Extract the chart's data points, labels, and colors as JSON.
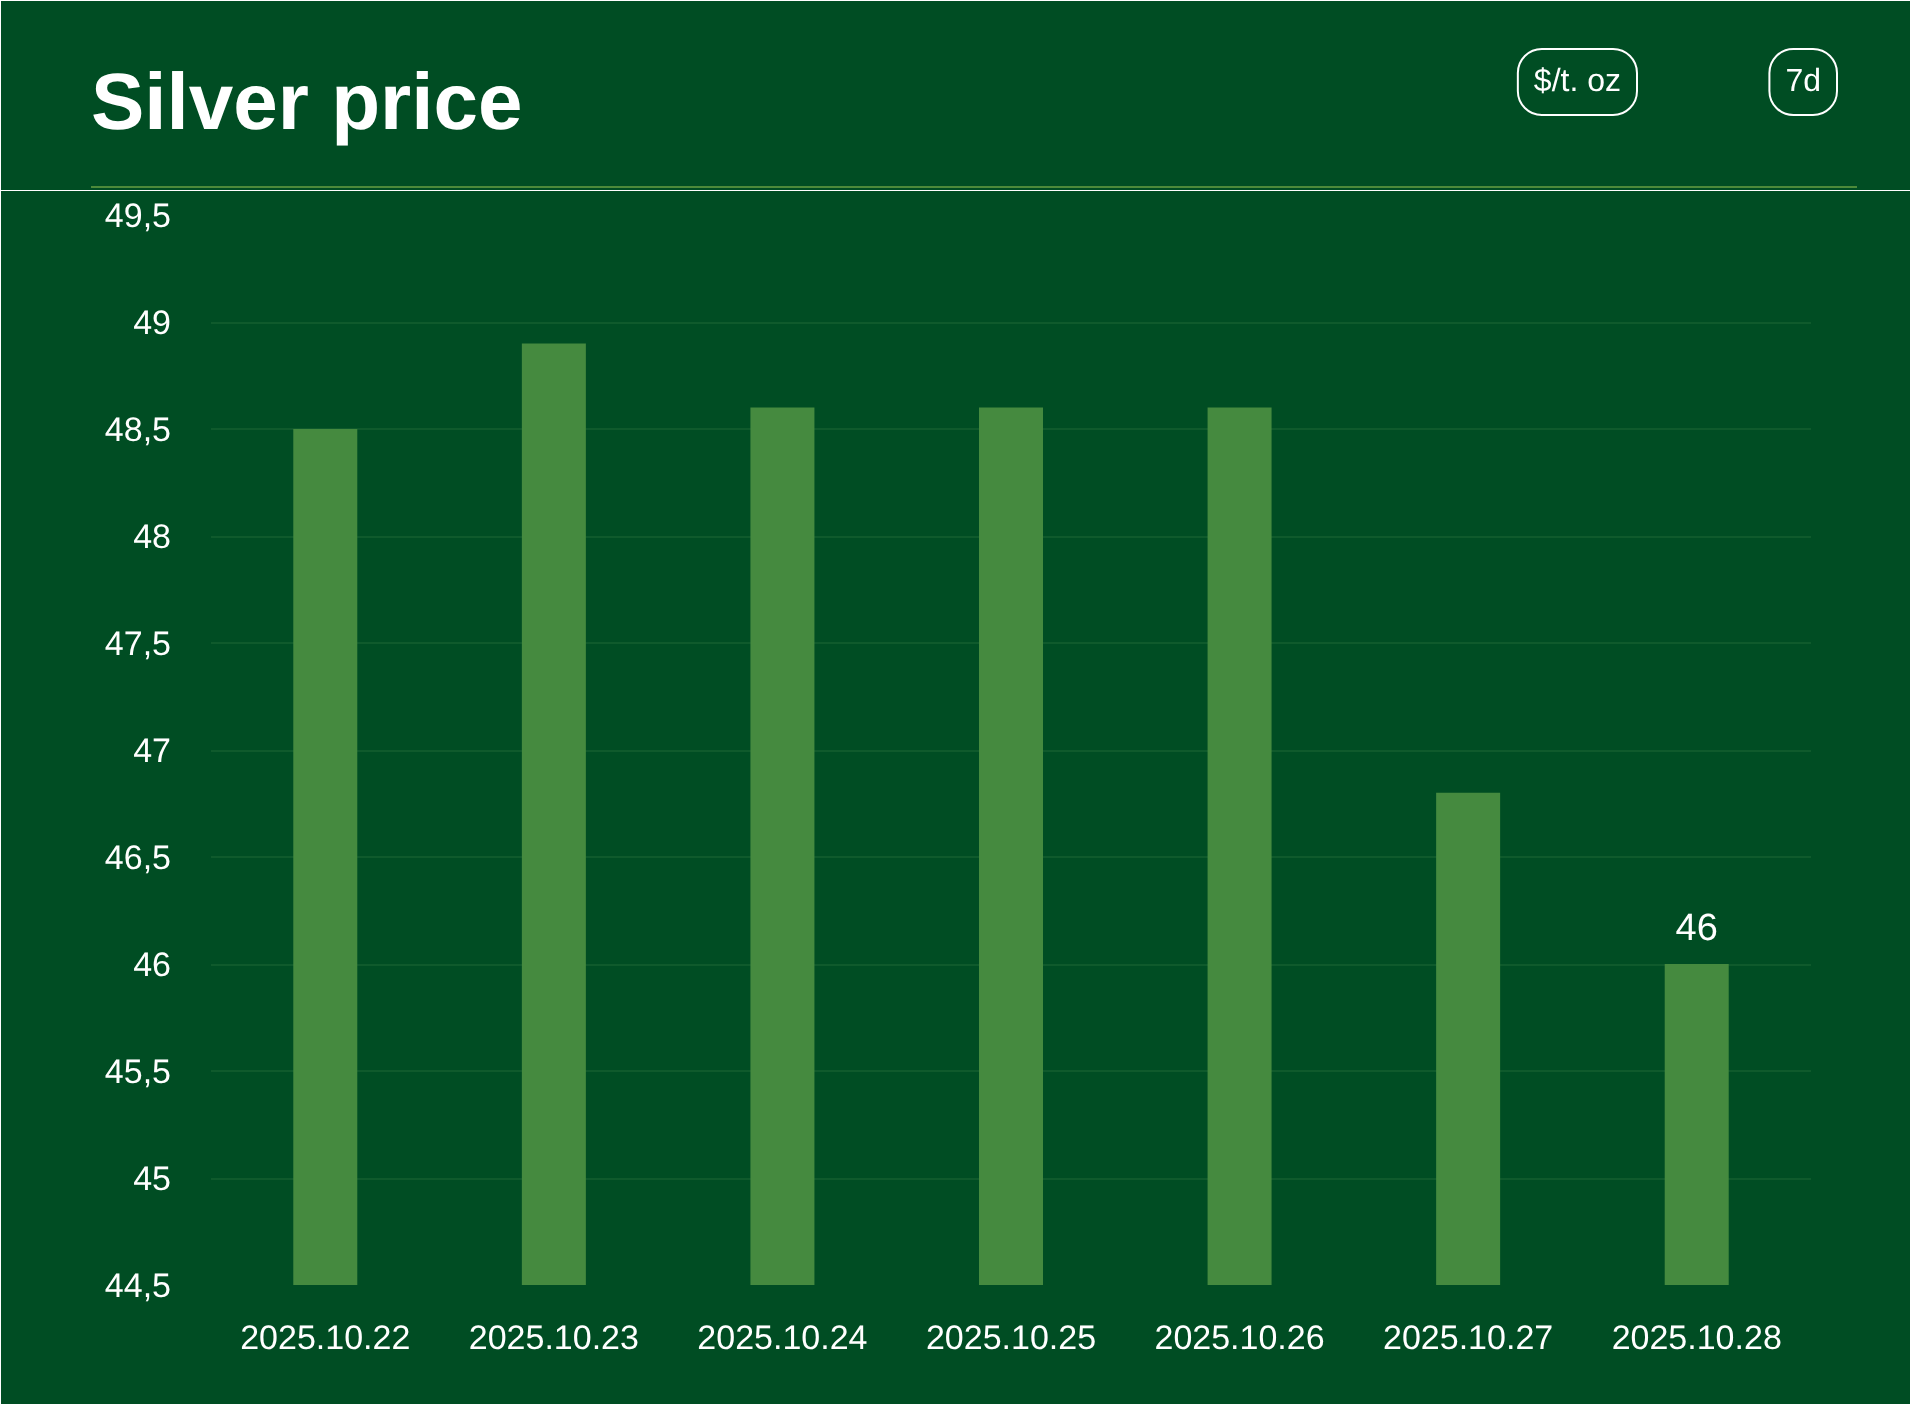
{
  "chart_data": {
    "type": "bar",
    "title": "Silver price",
    "categories": [
      "2025.10.22",
      "2025.10.23",
      "2025.10.24",
      "2025.10.25",
      "2025.10.26",
      "2025.10.27",
      "2025.10.28"
    ],
    "values": [
      48.5,
      48.9,
      48.6,
      48.6,
      48.6,
      46.8,
      46
    ],
    "value_labels": [
      null,
      null,
      null,
      null,
      null,
      null,
      "46"
    ],
    "color": "#458a3f",
    "ylim": [
      44.5,
      49.5
    ],
    "yticks": [
      {
        "value": 44.5,
        "label": "44,5"
      },
      45,
      {
        "value": 45.5,
        "label": "45,5"
      },
      46,
      {
        "value": 46.5,
        "label": "46,5"
      },
      47,
      {
        "value": 47.5,
        "label": "47,5"
      },
      48,
      {
        "value": 48.5,
        "label": "48,5"
      },
      49,
      {
        "value": 49.5,
        "label": "49,5"
      }
    ],
    "grid": "y",
    "annotations": [
      "$/t. oz",
      "7d"
    ]
  }
}
